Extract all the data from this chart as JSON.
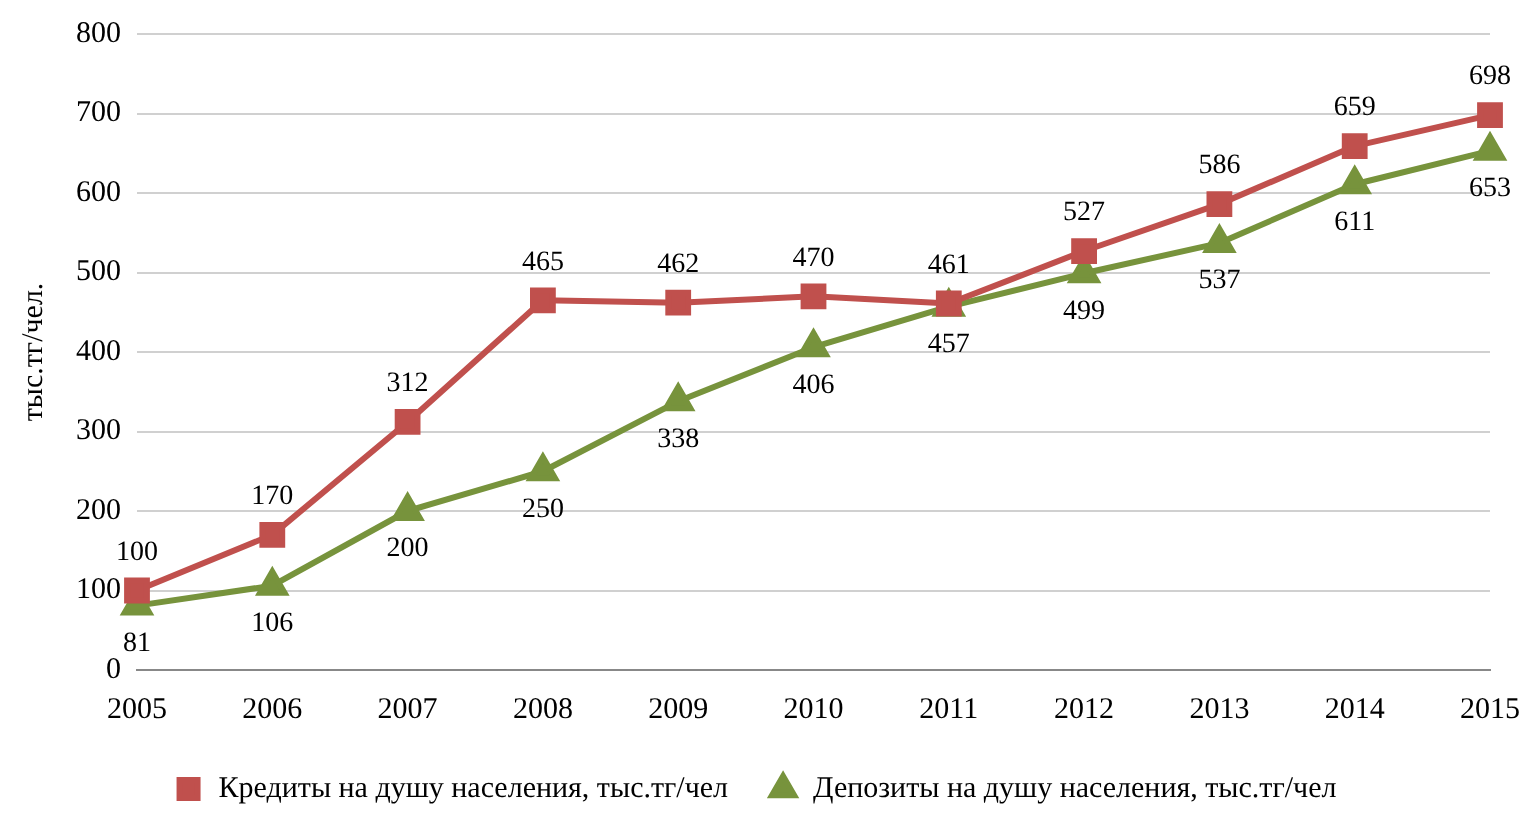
{
  "chart_data": {
    "type": "line",
    "ylabel": "тыс.тг/чел.",
    "categories": [
      "2005",
      "2006",
      "2007",
      "2008",
      "2009",
      "2010",
      "2011",
      "2012",
      "2013",
      "2014",
      "2015"
    ],
    "series": [
      {
        "name": "Кредиты на душу населения, тыс.тг/чел",
        "color": "#c0504d",
        "marker": "square",
        "values": [
          100,
          170,
          312,
          465,
          462,
          470,
          461,
          527,
          586,
          659,
          698
        ]
      },
      {
        "name": "Депозиты на душу населения, тыс.тг/чел",
        "color": "#77933c",
        "marker": "triangle",
        "values": [
          81,
          106,
          200,
          250,
          338,
          406,
          457,
          499,
          537,
          611,
          653
        ]
      }
    ],
    "ylim": [
      0,
      800
    ],
    "yticks": [
      0,
      100,
      200,
      300,
      400,
      500,
      600,
      700,
      800
    ],
    "grid": "y",
    "legend": "bottom",
    "data_labels": true
  }
}
